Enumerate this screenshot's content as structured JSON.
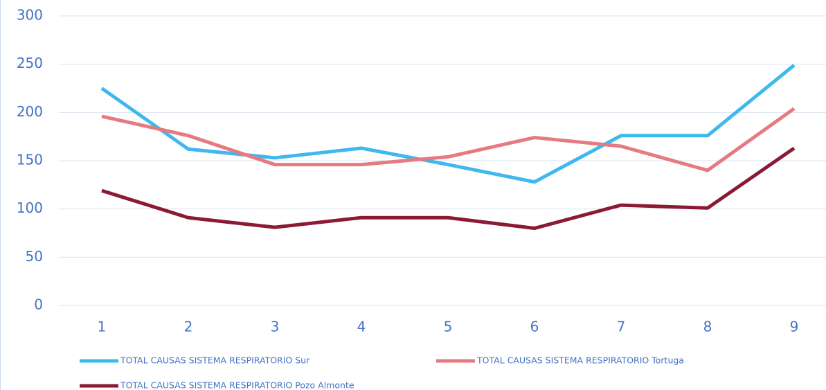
{
  "chart_data": {
    "type": "line",
    "categories": [
      "1",
      "2",
      "3",
      "4",
      "5",
      "6",
      "7",
      "8",
      "9"
    ],
    "series": [
      {
        "name": "TOTAL CAUSAS SISTEMA RESPIRATORIO Sur",
        "color": "#3fb8ee",
        "values": [
          225,
          162,
          153,
          163,
          146,
          128,
          176,
          176,
          249
        ]
      },
      {
        "name": "TOTAL CAUSAS SISTEMA RESPIRATORIO Tortuga",
        "color": "#e57a80",
        "values": [
          196,
          176,
          146,
          146,
          154,
          174,
          165,
          140,
          204
        ]
      },
      {
        "name": "TOTAL CAUSAS SISTEMA RESPIRATORIO Pozo Almonte",
        "color": "#8b1a33",
        "values": [
          119,
          91,
          81,
          91,
          91,
          80,
          104,
          101,
          163
        ]
      }
    ],
    "ylim": [
      0,
      300
    ],
    "yticks": [
      0,
      50,
      100,
      150,
      200,
      250,
      300
    ],
    "grid": true,
    "legend": "bottom"
  }
}
